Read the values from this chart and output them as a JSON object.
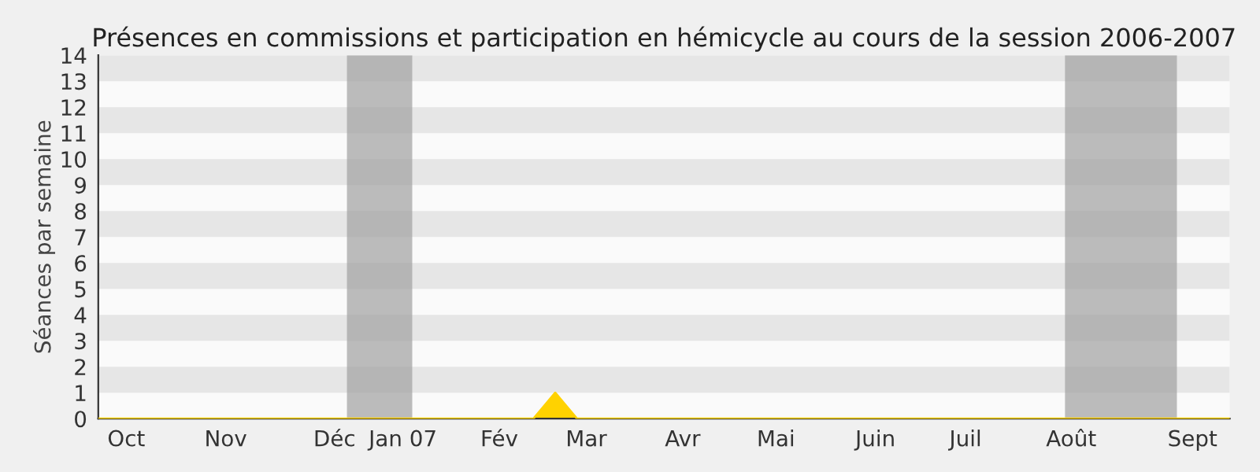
{
  "chart_data": {
    "type": "area",
    "title": "Présences en commissions et participation en hémicycle au cours de la session 2006-2007",
    "ylabel": "Séances par semaine",
    "x": [
      "2006-09-25",
      "2006-10-02",
      "2006-10-09",
      "2006-10-16",
      "2006-10-23",
      "2006-10-30",
      "2006-11-06",
      "2006-11-13",
      "2006-11-20",
      "2006-11-27",
      "2006-12-04",
      "2006-12-11",
      "2006-12-18",
      "2006-12-25",
      "2007-01-01",
      "2007-01-08",
      "2007-01-15",
      "2007-01-22",
      "2007-01-29",
      "2007-02-05",
      "2007-02-12",
      "2007-02-19",
      "2007-02-26",
      "2007-03-05",
      "2007-03-12",
      "2007-03-19",
      "2007-03-26",
      "2007-04-02",
      "2007-04-09",
      "2007-04-16",
      "2007-04-23",
      "2007-04-30",
      "2007-05-07",
      "2007-05-14",
      "2007-05-21",
      "2007-05-28",
      "2007-06-04",
      "2007-06-11",
      "2007-06-18",
      "2007-06-25",
      "2007-07-02",
      "2007-07-09",
      "2007-07-16",
      "2007-07-23",
      "2007-07-30",
      "2007-08-06",
      "2007-08-13",
      "2007-08-20",
      "2007-08-27",
      "2007-09-03",
      "2007-09-10",
      "2007-09-17",
      "2007-09-24"
    ],
    "series": [
      {
        "color": "#ffd200",
        "values": [
          0,
          0,
          0,
          0,
          0,
          0,
          0,
          0,
          0,
          0,
          0,
          0,
          0,
          0,
          0,
          0,
          0,
          0,
          0,
          0,
          0,
          1,
          0,
          0,
          0,
          0,
          0,
          0,
          0,
          0,
          0,
          0,
          0,
          0,
          0,
          0,
          0,
          0,
          0,
          0,
          0,
          0,
          0,
          0,
          0,
          0,
          0,
          0,
          0,
          0,
          0,
          0,
          0
        ]
      }
    ],
    "xlim": [
      "2006-09-25",
      "2007-09-24"
    ],
    "xticks": [
      {
        "value": "2006-10-04",
        "label": "Oct"
      },
      {
        "value": "2006-11-05",
        "label": "Nov"
      },
      {
        "value": "2006-12-10",
        "label": "Déc"
      },
      {
        "value": "2007-01-01",
        "label": "Jan 07"
      },
      {
        "value": "2007-02-01",
        "label": "Fév"
      },
      {
        "value": "2007-03-01",
        "label": "Mar"
      },
      {
        "value": "2007-04-01",
        "label": "Avr"
      },
      {
        "value": "2007-05-01",
        "label": "Mai"
      },
      {
        "value": "2007-06-02",
        "label": "Juin"
      },
      {
        "value": "2007-07-01",
        "label": "Juil"
      },
      {
        "value": "2007-08-04",
        "label": "Août"
      },
      {
        "value": "2007-09-12",
        "label": "Sept"
      }
    ],
    "ylim": [
      0,
      14
    ],
    "yticks": [
      0,
      1,
      2,
      3,
      4,
      5,
      6,
      7,
      8,
      9,
      10,
      11,
      12,
      13,
      14
    ],
    "bands": [
      {
        "axis": "y",
        "from": 1,
        "to": 2,
        "color": "#e6e6e6"
      },
      {
        "axis": "y",
        "from": 3,
        "to": 4,
        "color": "#e6e6e6"
      },
      {
        "axis": "y",
        "from": 5,
        "to": 6,
        "color": "#e6e6e6"
      },
      {
        "axis": "y",
        "from": 7,
        "to": 8,
        "color": "#e6e6e6"
      },
      {
        "axis": "y",
        "from": 9,
        "to": 10,
        "color": "#e6e6e6"
      },
      {
        "axis": "y",
        "from": 11,
        "to": 12,
        "color": "#e6e6e6"
      },
      {
        "axis": "y",
        "from": 13,
        "to": 14,
        "color": "#e6e6e6"
      },
      {
        "axis": "x",
        "from": "2006-12-14",
        "to": "2007-01-04",
        "color": "#a0a0a0"
      },
      {
        "axis": "x",
        "from": "2007-08-02",
        "to": "2007-09-07",
        "color": "#a0a0a0"
      }
    ]
  }
}
